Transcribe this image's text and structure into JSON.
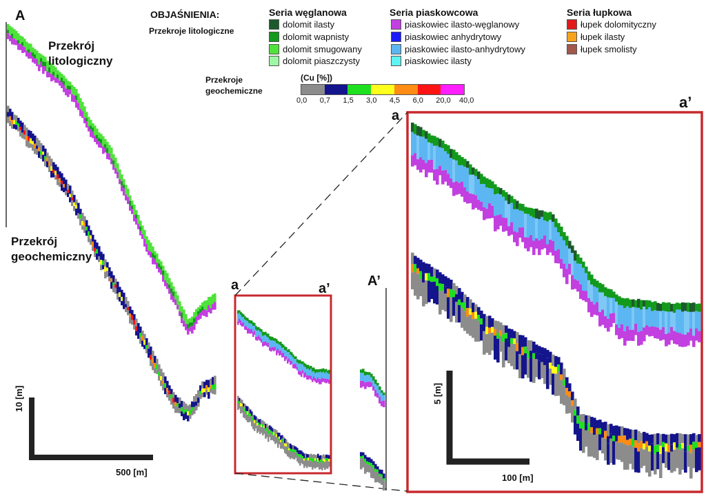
{
  "labels": {
    "A": "A",
    "A_prime": "A’",
    "a_small": "a",
    "a_prime_small": "a’",
    "a_big": "a",
    "a_prime_big": "a’",
    "litho": "Przekrój\nlitologiczny",
    "geo": "Przekrój\ngeochemiczny"
  },
  "legend": {
    "title": "OBJAŚNIENIA:",
    "subtitle": "Przekroje litologiczne",
    "groups": [
      {
        "title": "Seria węglanowa",
        "items": [
          {
            "label": "dolomit ilasty",
            "color": "#1d5a2b"
          },
          {
            "label": "dolomit wapnisty",
            "color": "#139a1c"
          },
          {
            "label": "dolomit smugowany",
            "color": "#4fe23b"
          },
          {
            "label": "dolomit piaszczysty",
            "color": "#9ef7a4"
          }
        ]
      },
      {
        "title": "Seria piaskowcowa",
        "items": [
          {
            "label": "piaskowiec ilasto-węglanowy",
            "color": "#c23fe0"
          },
          {
            "label": "piaskowiec anhydrytowy",
            "color": "#1a1aff"
          },
          {
            "label": "piaskowiec ilasto-anhydrytowy",
            "color": "#5cb6f2"
          },
          {
            "label": "piaskowiec ilasty",
            "color": "#5ff3f3"
          }
        ]
      },
      {
        "title": "Seria łupkowa",
        "items": [
          {
            "label": "łupek dolomityczny",
            "color": "#e31a1a"
          },
          {
            "label": "łupek ilasty",
            "color": "#f7a21b"
          },
          {
            "label": "łupek smolisty",
            "color": "#a0594a"
          }
        ]
      }
    ],
    "geo_title": "Przekroje\ngeochemiczne",
    "cu_label": "(Cu [%])",
    "cu_colors": [
      "#8c8c8c",
      "#14148c",
      "#1ee01e",
      "#ffff1e",
      "#ff8c14",
      "#ff1414",
      "#ff1eff"
    ],
    "cu_ticks": [
      "0,0",
      "0,7",
      "1,5",
      "3,0",
      "4,5",
      "6,0",
      "20,0",
      "40,0"
    ]
  },
  "scales": {
    "main_vertical": "10 [m]",
    "main_horizontal": "500 [m]",
    "detail_vertical": "5 [m]",
    "detail_horizontal": "100 [m]"
  }
}
